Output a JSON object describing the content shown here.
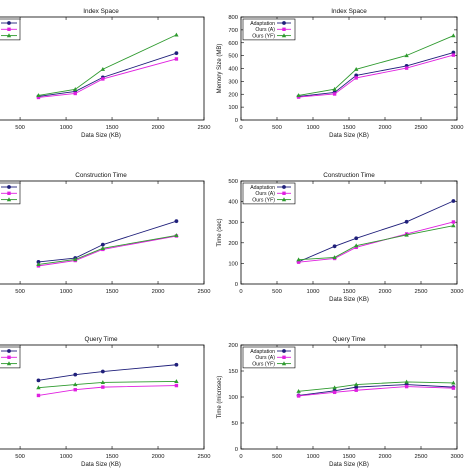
{
  "colors": {
    "adaptation": "#1f1f7a",
    "ours_a": "#e020e0",
    "ours_yf": "#2e9a2e",
    "axis": "#000000"
  },
  "chart_data": [
    {
      "type": "line",
      "title": "Index Space",
      "xlabel": "Data Size (KB)",
      "ylabel": "",
      "xlim": [
        260,
        2500
      ],
      "xticks": [
        "500",
        "1000",
        "1500",
        "2000",
        "2500"
      ],
      "ylim": [
        0,
        800
      ],
      "yticks": [],
      "legend": "top-left",
      "legend_labels": false,
      "x": [
        700,
        1100,
        1400,
        2200
      ],
      "series": [
        {
          "key": "adaptation",
          "values": [
            183,
            222,
            331,
            519
          ],
          "marker": "circle"
        },
        {
          "key": "ours_a",
          "values": [
            175,
            206,
            319,
            474
          ],
          "marker": "square"
        },
        {
          "key": "ours_yf",
          "values": [
            191,
            238,
            394,
            661
          ],
          "marker": "triangle"
        }
      ]
    },
    {
      "type": "line",
      "title": "Index Space",
      "xlabel": "Data Size (KB)",
      "ylabel": "Memory Size (MB)",
      "xlim": [
        0,
        3000
      ],
      "xticks": [
        "0",
        "500",
        "1000",
        "1500",
        "2000",
        "2500",
        "3000"
      ],
      "ylim": [
        0,
        800
      ],
      "yticks": [
        "0",
        "100",
        "200",
        "300",
        "400",
        "500",
        "600",
        "700",
        "800"
      ],
      "legend": "top-left",
      "x": [
        800,
        1300,
        1600,
        2300,
        2950
      ],
      "series": [
        {
          "name": "Adaptation",
          "key": "adaptation",
          "values": [
            183,
            214,
            346,
            420,
            524
          ],
          "marker": "circle"
        },
        {
          "name": "Ours (A)",
          "key": "ours_a",
          "values": [
            178,
            202,
            327,
            403,
            504
          ],
          "marker": "square"
        },
        {
          "name": "Ours (YF)",
          "key": "ours_yf",
          "values": [
            191,
            239,
            394,
            501,
            655
          ],
          "marker": "triangle"
        }
      ]
    },
    {
      "type": "line",
      "title": "Construction Time",
      "xlabel": "",
      "ylabel": "",
      "xlim": [
        260,
        2500
      ],
      "xticks": [
        "500",
        "1000",
        "1500",
        "2000",
        "2500"
      ],
      "ylim": [
        0,
        500
      ],
      "yticks": [],
      "legend": "top-left",
      "legend_labels": false,
      "x": [
        700,
        1100,
        1400,
        2200
      ],
      "series": [
        {
          "key": "adaptation",
          "values": [
            107,
            126,
            191,
            305
          ],
          "marker": "circle"
        },
        {
          "key": "ours_a",
          "values": [
            88,
            114,
            168,
            233
          ],
          "marker": "square"
        },
        {
          "key": "ours_yf",
          "values": [
            95,
            119,
            173,
            236
          ],
          "marker": "triangle"
        }
      ]
    },
    {
      "type": "line",
      "title": "Construction Time",
      "xlabel": "Data Size (KB)",
      "ylabel": "Time (sec)",
      "xlim": [
        0,
        3000
      ],
      "xticks": [
        "0",
        "500",
        "1000",
        "1500",
        "2000",
        "2500",
        "3000"
      ],
      "ylim": [
        0,
        500
      ],
      "yticks": [
        "0",
        "100",
        "200",
        "300",
        "400",
        "500"
      ],
      "legend": "top-left",
      "x": [
        800,
        1300,
        1600,
        2300,
        2950
      ],
      "series": [
        {
          "name": "Adaptation",
          "key": "adaptation",
          "values": [
            108,
            183,
            222,
            302,
            403
          ],
          "marker": "circle"
        },
        {
          "name": "Ours (A)",
          "key": "ours_a",
          "values": [
            106,
            124,
            178,
            243,
            301
          ],
          "marker": "square"
        },
        {
          "name": "Ours (YF)",
          "key": "ours_yf",
          "values": [
            118,
            129,
            186,
            238,
            283
          ],
          "marker": "triangle"
        }
      ]
    },
    {
      "type": "line",
      "title": "Query Time",
      "xlabel": "Data Size (KB)",
      "ylabel": "",
      "xlim": [
        260,
        2500
      ],
      "xticks": [
        "500",
        "1000",
        "1500",
        "2000",
        "2500"
      ],
      "ylim": [
        0,
        200
      ],
      "yticks": [],
      "legend": "top-left",
      "legend_labels": false,
      "x": [
        700,
        1100,
        1400,
        2200
      ],
      "series": [
        {
          "key": "adaptation",
          "values": [
            132,
            143,
            149,
            162
          ],
          "marker": "circle"
        },
        {
          "key": "ours_a",
          "values": [
            103,
            114,
            119,
            122
          ],
          "marker": "square"
        },
        {
          "key": "ours_yf",
          "values": [
            118,
            124,
            128,
            130
          ],
          "marker": "triangle"
        }
      ]
    },
    {
      "type": "line",
      "title": "Query Time",
      "xlabel": "Data Size (KB)",
      "ylabel": "Time (microsec)",
      "xlim": [
        0,
        3000
      ],
      "xticks": [
        "0",
        "500",
        "1000",
        "1500",
        "2000",
        "2500",
        "3000"
      ],
      "ylim": [
        0,
        200
      ],
      "yticks": [
        "0",
        "50",
        "100",
        "150",
        "200"
      ],
      "legend": "top-left",
      "x": [
        800,
        1300,
        1600,
        2300,
        2950
      ],
      "series": [
        {
          "name": "Adaptation",
          "key": "adaptation",
          "values": [
            103,
            112,
            119,
            124,
            119
          ],
          "marker": "circle"
        },
        {
          "name": "Ours (A)",
          "key": "ours_a",
          "values": [
            102,
            109,
            113,
            120,
            117
          ],
          "marker": "square"
        },
        {
          "name": "Ours (YF)",
          "key": "ours_yf",
          "values": [
            111,
            118,
            124,
            129,
            127
          ],
          "marker": "triangle"
        }
      ]
    }
  ]
}
